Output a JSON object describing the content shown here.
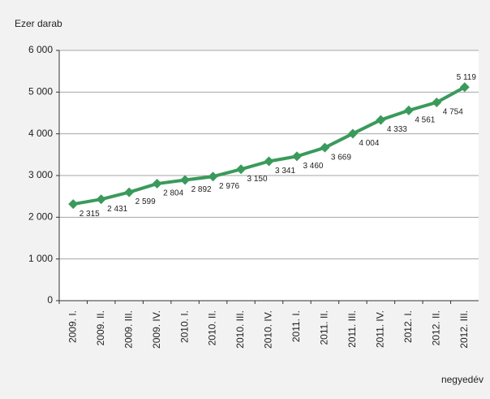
{
  "chart_data": {
    "type": "line",
    "y_label": "Ezer darab",
    "x_label": "negyedév",
    "categories": [
      "2009. I.",
      "2009. II.",
      "2009. III.",
      "2009. IV.",
      "2010. I.",
      "2010. II.",
      "2010. III.",
      "2010. IV.",
      "2011. I.",
      "2011. II.",
      "2011. III.",
      "2011. IV.",
      "2012. I.",
      "2012. II.",
      "2012. III."
    ],
    "series": [
      {
        "color": "#3a9a5b",
        "values": [
          2315,
          2431,
          2599,
          2804,
          2892,
          2976,
          3150,
          3341,
          3460,
          3669,
          4004,
          4333,
          4561,
          4754,
          5119
        ],
        "value_labels": [
          "2 315",
          "2 431",
          "2 599",
          "2 804",
          "2 892",
          "2 976",
          "3 150",
          "3 341",
          "3 460",
          "3 669",
          "4 004",
          "4 333",
          "4 561",
          "4 754",
          "5 119"
        ]
      }
    ],
    "ylim": [
      0,
      6000
    ],
    "yticks": [
      0,
      {
        "value": 1000,
        "label": "1 000"
      },
      {
        "value": 2000,
        "label": "2 000"
      },
      {
        "value": 3000,
        "label": "3 000"
      },
      {
        "value": 4000,
        "label": "4 000"
      },
      {
        "value": 5000,
        "label": "5 000"
      },
      {
        "value": 6000,
        "label": "6 000"
      }
    ],
    "grid": true
  }
}
